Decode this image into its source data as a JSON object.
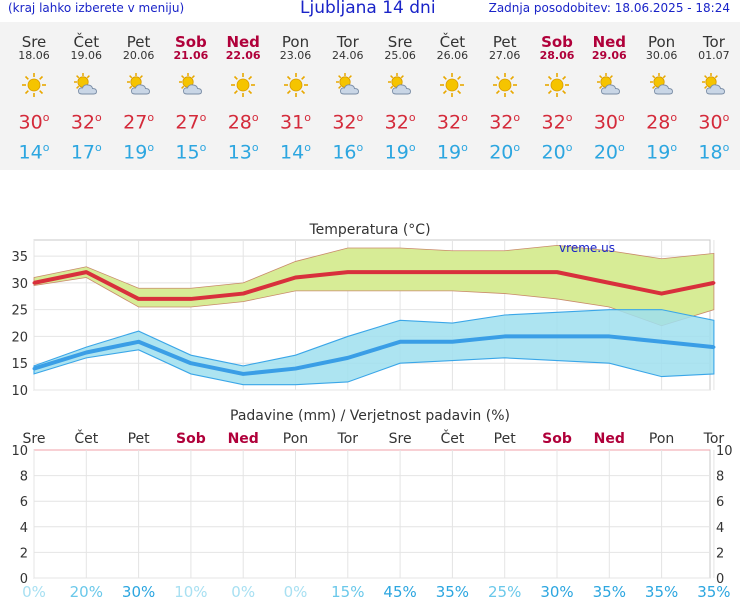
{
  "header": {
    "hint": "(kraj lahko izberete v meniju)",
    "title": "Ljubljana 14 dni",
    "updated": "Zadnja posodobitev: 18.06.2025 - 18:24"
  },
  "degree_mark": "o",
  "days": [
    {
      "name": "Sre",
      "date": "18.06",
      "weekend": false,
      "icon": "sun-icon",
      "tmax": "30",
      "tmin": "14"
    },
    {
      "name": "Čet",
      "date": "19.06",
      "weekend": false,
      "icon": "sun-cloud-icon",
      "tmax": "32",
      "tmin": "17"
    },
    {
      "name": "Pet",
      "date": "20.06",
      "weekend": false,
      "icon": "sun-cloud-icon",
      "tmax": "27",
      "tmin": "19"
    },
    {
      "name": "Sob",
      "date": "21.06",
      "weekend": true,
      "icon": "sun-cloud-icon",
      "tmax": "27",
      "tmin": "15"
    },
    {
      "name": "Ned",
      "date": "22.06",
      "weekend": true,
      "icon": "sun-icon",
      "tmax": "28",
      "tmin": "13"
    },
    {
      "name": "Pon",
      "date": "23.06",
      "weekend": false,
      "icon": "sun-icon",
      "tmax": "31",
      "tmin": "14"
    },
    {
      "name": "Tor",
      "date": "24.06",
      "weekend": false,
      "icon": "sun-cloud-icon",
      "tmax": "32",
      "tmin": "16"
    },
    {
      "name": "Sre",
      "date": "25.06",
      "weekend": false,
      "icon": "sun-cloud-icon",
      "tmax": "32",
      "tmin": "19"
    },
    {
      "name": "Čet",
      "date": "26.06",
      "weekend": false,
      "icon": "sun-icon",
      "tmax": "32",
      "tmin": "19"
    },
    {
      "name": "Pet",
      "date": "27.06",
      "weekend": false,
      "icon": "sun-icon",
      "tmax": "32",
      "tmin": "20"
    },
    {
      "name": "Sob",
      "date": "28.06",
      "weekend": true,
      "icon": "sun-icon",
      "tmax": "32",
      "tmin": "20"
    },
    {
      "name": "Ned",
      "date": "29.06",
      "weekend": true,
      "icon": "sun-cloud-icon",
      "tmax": "30",
      "tmin": "20"
    },
    {
      "name": "Pon",
      "date": "30.06",
      "weekend": false,
      "icon": "sun-cloud-icon",
      "tmax": "28",
      "tmin": "19"
    },
    {
      "name": "Tor",
      "date": "01.07",
      "weekend": false,
      "icon": "sun-cloud-icon",
      "tmax": "30",
      "tmin": "18"
    }
  ],
  "colors": {
    "max": "#d42a3a",
    "min": "#2ca6e0",
    "weekend": "#b0003a",
    "sun": "#f5c400"
  },
  "chart_data": [
    {
      "type": "area",
      "title": "Temperatura (°C)",
      "watermark": "vreme.us",
      "ylim": [
        10,
        38
      ],
      "yticks": [
        10,
        15,
        20,
        25,
        30,
        35
      ],
      "categories": [
        "Sre",
        "Čet",
        "Pet",
        "Sob",
        "Ned",
        "Pon",
        "Tor",
        "Sre",
        "Čet",
        "Pet",
        "Sob",
        "Ned",
        "Pon",
        "Tor"
      ],
      "series": [
        {
          "values": [
            30,
            32,
            27,
            27,
            28,
            31,
            32,
            32,
            32,
            32,
            32,
            30,
            28,
            30
          ]
        },
        {
          "values": [
            31,
            33,
            29,
            29,
            30,
            34,
            36.5,
            36.5,
            36,
            36,
            37,
            36,
            34.5,
            35.5
          ]
        },
        {
          "values": [
            29.5,
            31,
            25.5,
            25.5,
            26.5,
            28.5,
            28.5,
            28.5,
            28.5,
            28,
            27,
            25.5,
            22,
            25
          ]
        },
        {
          "values": [
            14,
            17,
            19,
            15,
            13,
            14,
            16,
            19,
            19,
            20,
            20,
            20,
            19,
            18
          ]
        },
        {
          "values": [
            14.5,
            18,
            21,
            16.5,
            14.5,
            16.5,
            20,
            23,
            22.5,
            24,
            24.5,
            25,
            25,
            23
          ]
        },
        {
          "values": [
            13,
            16,
            17.5,
            13,
            11,
            11,
            11.5,
            15,
            15.5,
            16,
            15.5,
            15,
            12.5,
            13
          ]
        }
      ]
    },
    {
      "type": "bar",
      "title": "Padavine (mm) / Verjetnost padavin (%)",
      "ylim": [
        0,
        10
      ],
      "yticks": [
        0,
        2,
        4,
        6,
        8,
        10
      ],
      "categories": [
        "Sre",
        "Čet",
        "Pet",
        "Sob",
        "Ned",
        "Pon",
        "Tor",
        "Sre",
        "Čet",
        "Pet",
        "Sob",
        "Ned",
        "Pon",
        "Tor"
      ],
      "values": [
        0,
        0,
        0,
        0,
        0,
        0,
        0,
        0,
        0,
        0,
        0,
        0,
        0,
        0
      ],
      "probability": [
        "0%",
        "20%",
        "30%",
        "10%",
        "0%",
        "0%",
        "15%",
        "45%",
        "35%",
        "25%",
        "30%",
        "35%",
        "35%",
        "35%"
      ],
      "probability_values": [
        0,
        20,
        30,
        10,
        0,
        0,
        15,
        45,
        35,
        25,
        30,
        35,
        35,
        35
      ]
    }
  ]
}
